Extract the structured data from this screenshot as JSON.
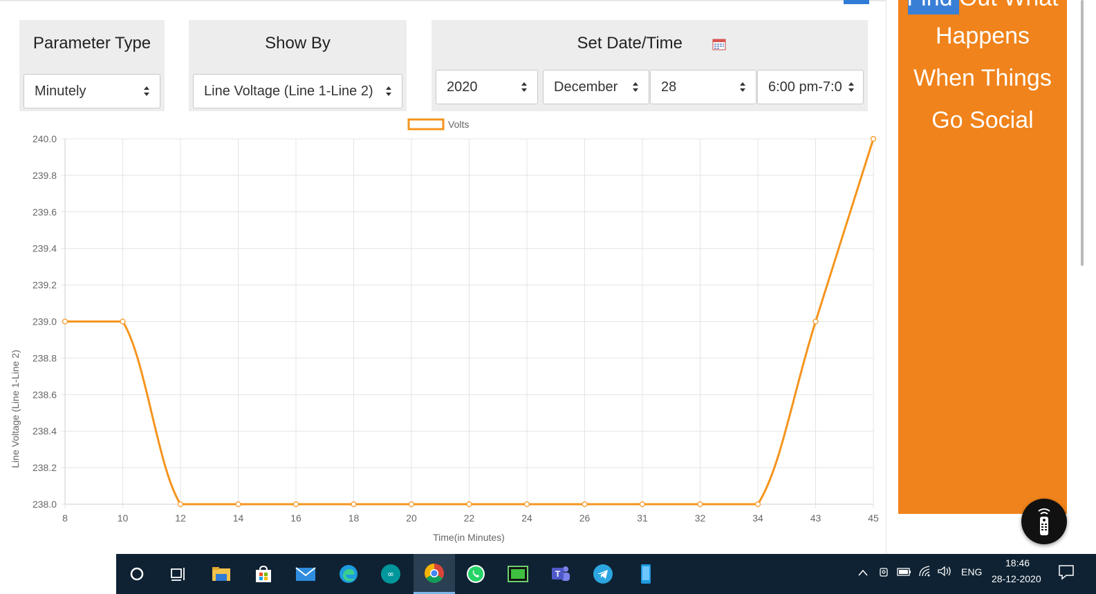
{
  "controls": {
    "parameter_type": {
      "title": "Parameter Type",
      "value": "Minutely"
    },
    "show_by": {
      "title": "Show By",
      "value": "Line Voltage (Line 1-Line 2)"
    },
    "date_time": {
      "title": "Set Date/Time",
      "year": "2020",
      "month": "December",
      "day": "28",
      "time": "6:00 pm-7:0"
    }
  },
  "sidebar": {
    "lines": [
      "Find Out What",
      "Happens",
      "When Things",
      "Go Social"
    ]
  },
  "chart_data": {
    "type": "line",
    "categories": [
      "8",
      "10",
      "12",
      "14",
      "16",
      "18",
      "20",
      "22",
      "24",
      "26",
      "31",
      "32",
      "34",
      "43",
      "45"
    ],
    "series": [
      {
        "name": "Volts",
        "values": [
          239.0,
          239.0,
          238.0,
          238.0,
          238.0,
          238.0,
          238.0,
          238.0,
          238.0,
          238.0,
          238.0,
          238.0,
          238.0,
          239.0,
          240.0
        ]
      }
    ],
    "xlabel": "Time(in Minutes)",
    "ylabel": "Line Voltage (Line 1-Line 2)",
    "ylim": [
      238.0,
      240.0
    ],
    "yticks": [
      "238.0",
      "238.2",
      "238.4",
      "238.6",
      "238.8",
      "239.0",
      "239.2",
      "239.4",
      "239.6",
      "239.8",
      "240.0"
    ],
    "grid": true,
    "legend": "top",
    "color": "#f5941d"
  },
  "taskbar": {
    "icons": [
      "search-circle-icon",
      "task-view-icon",
      "file-explorer-icon",
      "store-icon",
      "mail-icon",
      "edge-icon",
      "arduino-icon",
      "chrome-icon",
      "whatsapp-icon",
      "app-icon",
      "teams-icon",
      "telegram-icon",
      "phone-icon"
    ],
    "language": "ENG",
    "time": "18:46",
    "date": "28-12-2020"
  }
}
